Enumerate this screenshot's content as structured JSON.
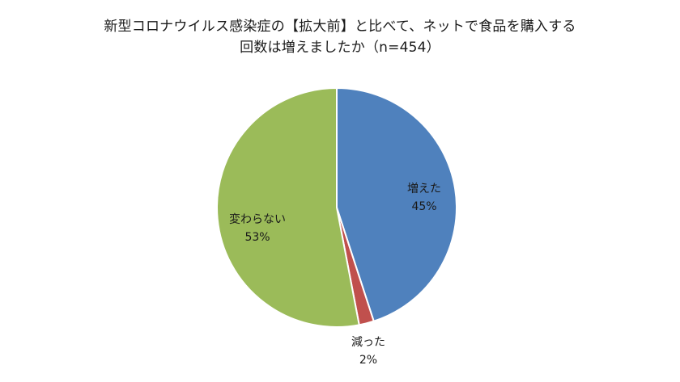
{
  "chart_data": {
    "type": "pie",
    "title_lines": [
      "新型コロナウイルス感染症の【拡大前】と比べて、ネットで食品を購入する",
      "回数は増えましたか（n=454）"
    ],
    "slices": [
      {
        "label": "増えた",
        "value": 45,
        "value_label": "45%",
        "color": "#4f81bd"
      },
      {
        "label": "減った",
        "value": 2,
        "value_label": "2%",
        "color": "#c0504d"
      },
      {
        "label": "変わらない",
        "value": 53,
        "value_label": "53%",
        "color": "#9bbb59"
      }
    ],
    "start_angle_deg": 0,
    "direction": "clockwise",
    "legend": "none"
  }
}
